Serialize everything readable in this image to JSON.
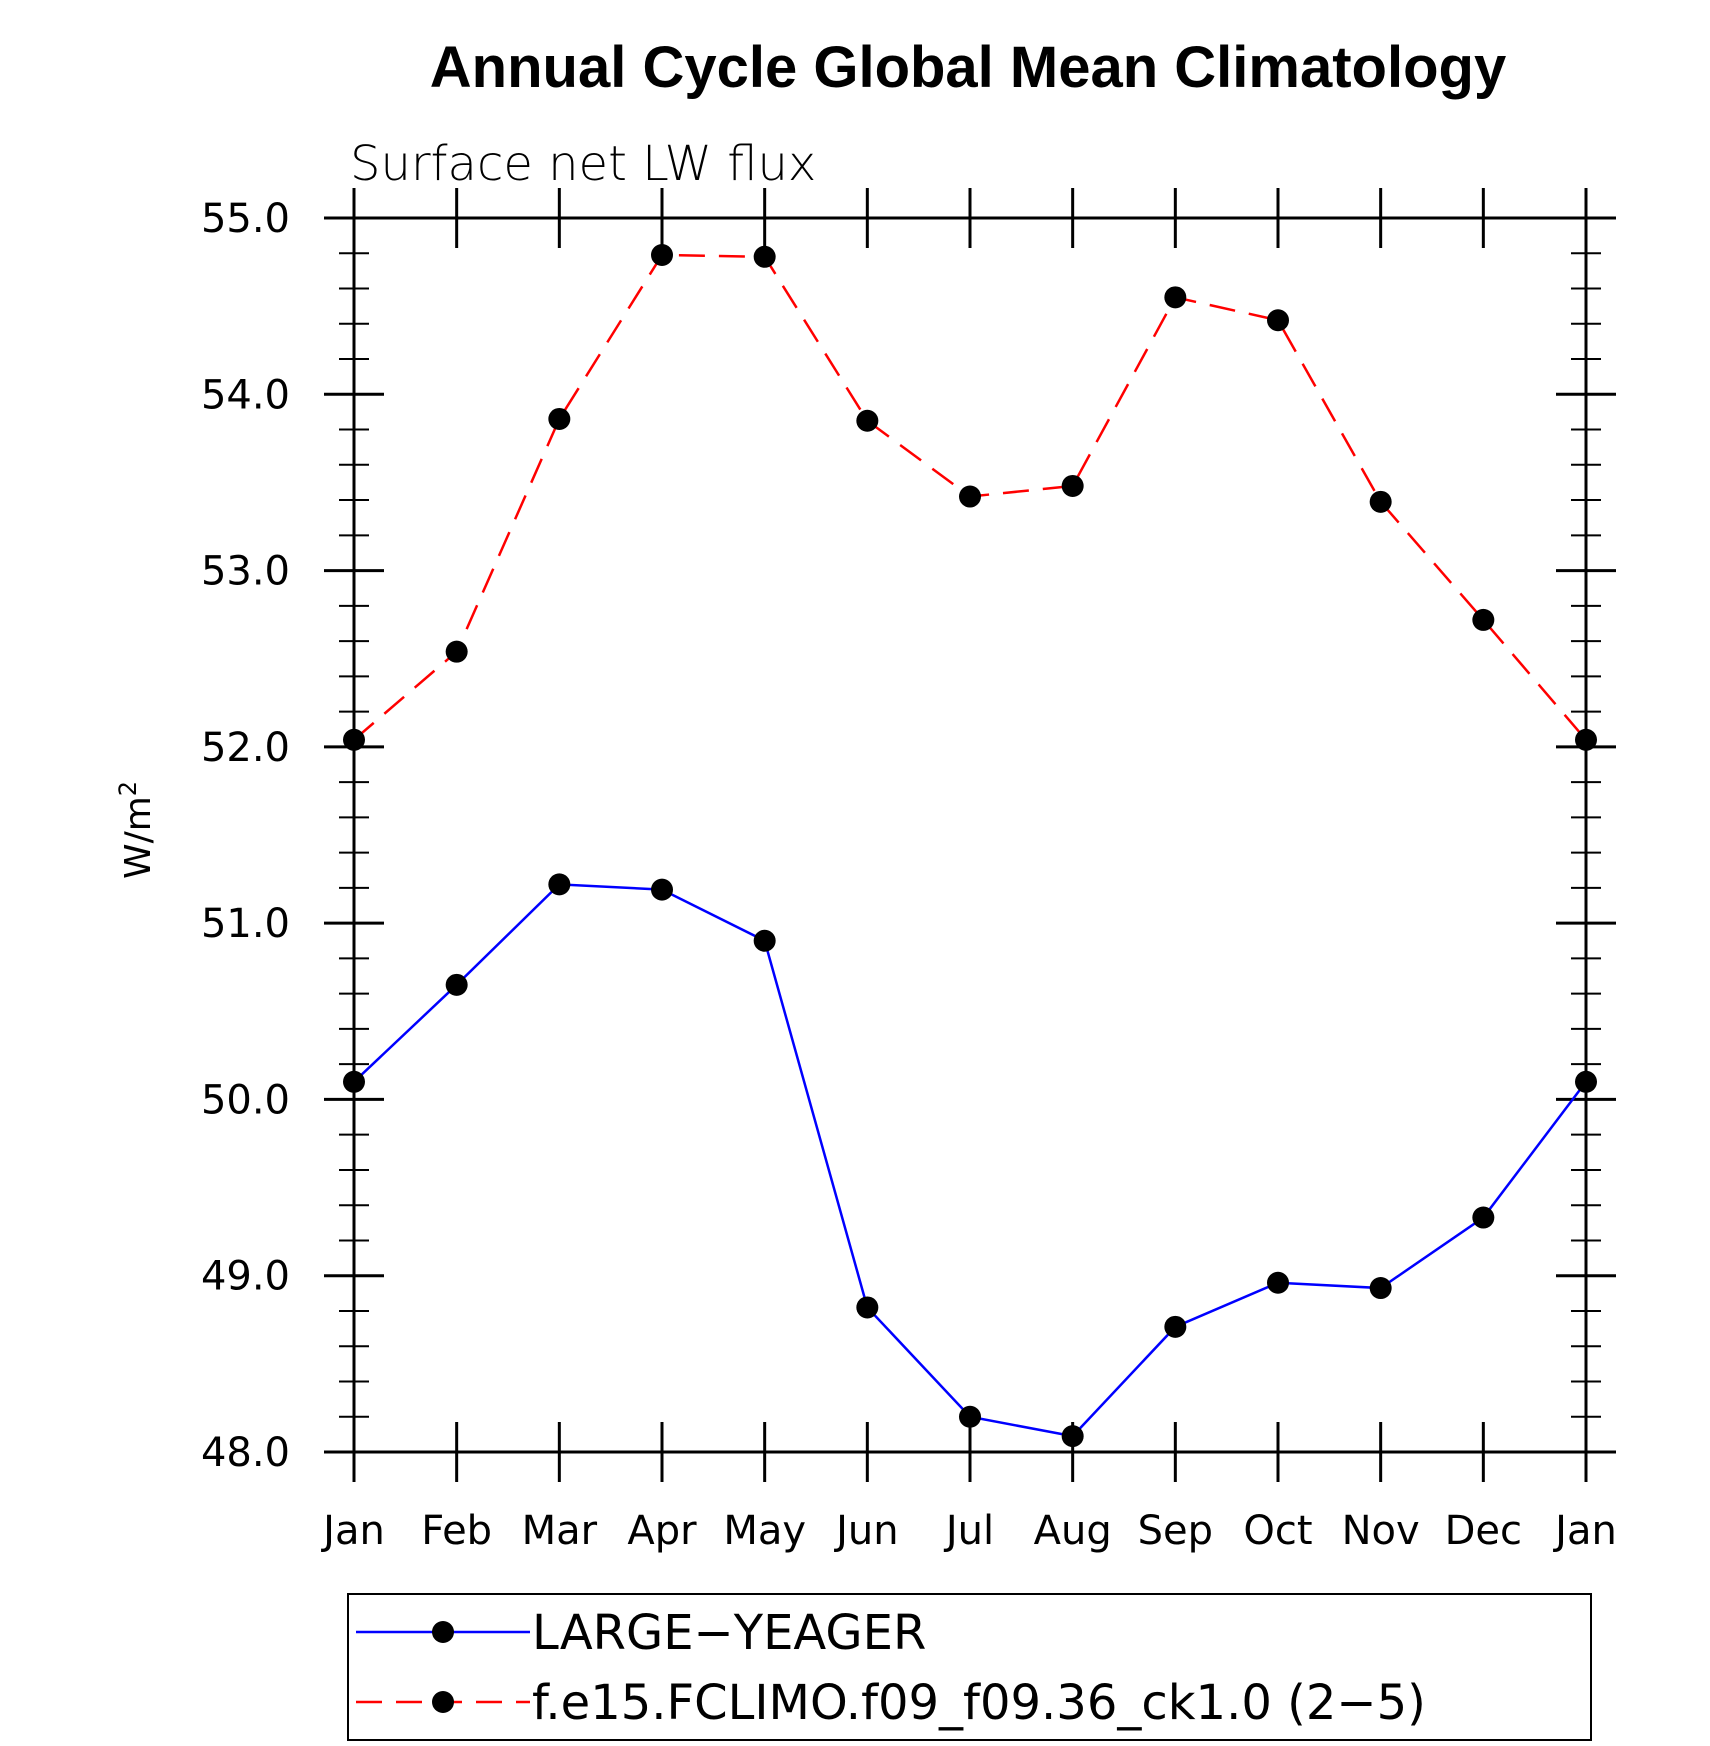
{
  "chart_data": {
    "type": "line",
    "title": "Annual Cycle Global Mean Climatology",
    "subtitle": "Surface net LW flux",
    "ylabel_base": "W/m",
    "ylabel_sup": "2",
    "categories": [
      "Jan",
      "Feb",
      "Mar",
      "Apr",
      "May",
      "Jun",
      "Jul",
      "Aug",
      "Sep",
      "Oct",
      "Nov",
      "Dec",
      "Jan"
    ],
    "ylim": [
      48.0,
      55.0
    ],
    "yticks": [
      "48.0",
      "49.0",
      "50.0",
      "51.0",
      "52.0",
      "53.0",
      "54.0",
      "55.0"
    ],
    "series": [
      {
        "name": "LARGE−YEAGER",
        "color": "#0000ff",
        "dash": "solid",
        "values": [
          50.1,
          50.65,
          51.22,
          51.19,
          50.9,
          48.82,
          48.2,
          48.09,
          48.71,
          48.96,
          48.93,
          49.33,
          50.1
        ]
      },
      {
        "name": "f.e15.FCLIMO.f09_f09.36_ck1.0 (2−5)",
        "color": "#ff0000",
        "dash": "dashed",
        "values": [
          52.04,
          52.54,
          53.86,
          54.79,
          54.78,
          53.85,
          53.42,
          53.48,
          54.55,
          54.42,
          53.39,
          52.72,
          52.04
        ]
      }
    ],
    "marker_color": "#000000",
    "grid": false,
    "legend_position": "bottom"
  }
}
